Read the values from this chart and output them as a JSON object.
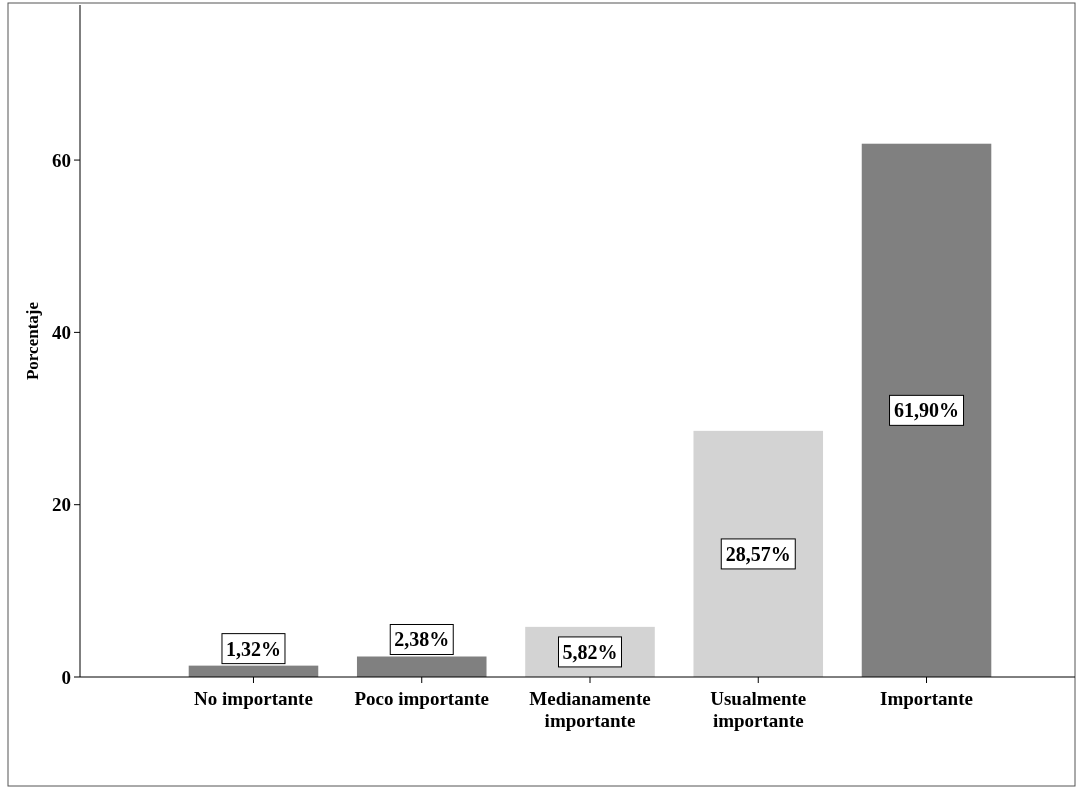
{
  "chart_data": {
    "type": "bar",
    "ylabel": "Porcentaje",
    "categories": [
      "No importante",
      "Poco importante",
      "Medianamente importante",
      "Usualmente importante",
      "Importante"
    ],
    "values": [
      1.32,
      2.38,
      5.82,
      28.57,
      61.9
    ],
    "colors": [
      "#808080",
      "#808080",
      "#d3d3d3",
      "#d3d3d3",
      "#808080"
    ],
    "value_labels": [
      "1,32%",
      "2,38%",
      "5,82%",
      "28,57%",
      "61,90%"
    ],
    "ylim": [
      0,
      78
    ],
    "yticks": [
      0,
      20,
      40,
      60
    ],
    "grid": false
  }
}
